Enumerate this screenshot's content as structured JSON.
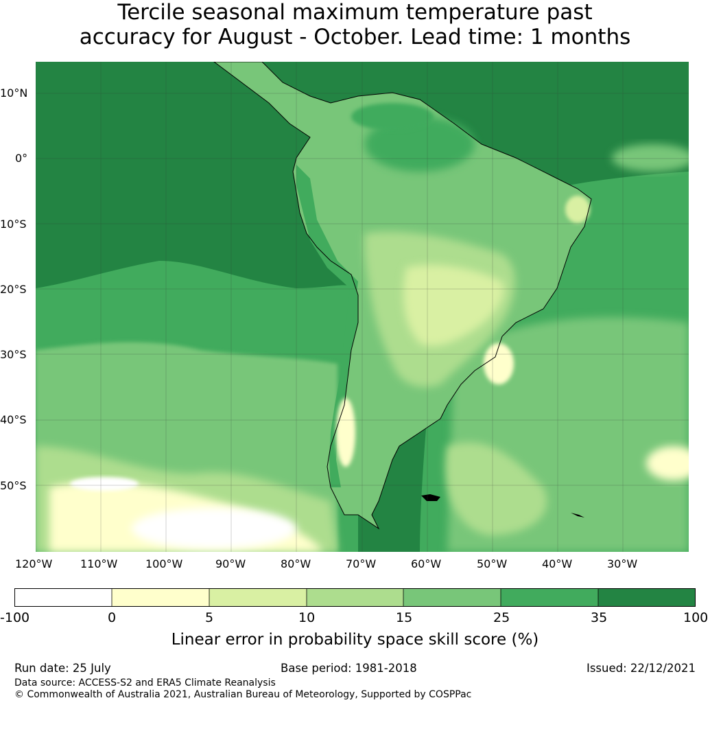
{
  "title": {
    "line1": "Tercile seasonal maximum temperature past",
    "line2": "accuracy for August - October. Lead time: 1 months"
  },
  "map": {
    "lat_labels": [
      "10°N",
      "0°",
      "10°S",
      "20°S",
      "30°S",
      "40°S",
      "50°S"
    ],
    "lon_labels": [
      "120°W",
      "110°W",
      "100°W",
      "90°W",
      "80°W",
      "70°W",
      "60°W",
      "50°W",
      "40°W",
      "30°W"
    ],
    "ocean_color": "#238443",
    "land_colors": [
      "#78c679",
      "#41ab5d",
      "#addd8e",
      "#d9f0a3"
    ]
  },
  "colorbar": {
    "ticks": [
      "-100",
      "0",
      "5",
      "10",
      "15",
      "25",
      "35",
      "100"
    ],
    "colors": [
      "#ffffff",
      "#ffffcc",
      "#d9f0a3",
      "#addd8e",
      "#78c679",
      "#41ab5d",
      "#238443"
    ],
    "label": "Linear error in probability space skill score (%)"
  },
  "footer": {
    "run_date": "Run date: 25 July",
    "base_period": "Base period: 1981-2018",
    "issued": "Issued: 22/12/2021",
    "data_source": "Data source: ACCESS-S2 and ERA5 Climate Reanalysis",
    "copyright": "© Commonwealth of Australia 2021, Australian Bureau of Meteorology, Supported by COSPPac"
  }
}
